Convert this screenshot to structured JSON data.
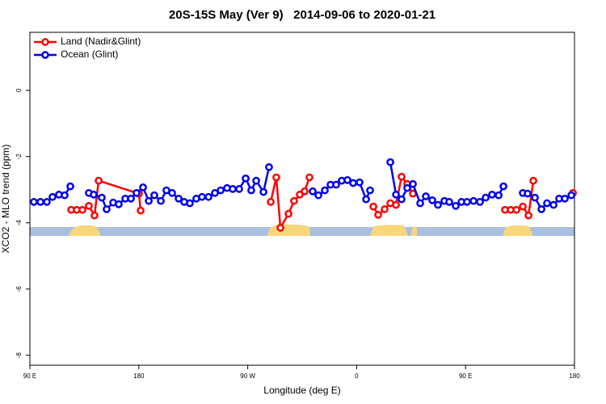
{
  "chart_data": {
    "type": "line",
    "title": "20S-15S May (Ver 9)   2014-09-06 to 2020-01-21",
    "x_label": "Longitude (deg E)",
    "y_label": "XCO2 - MLO trend (ppm)",
    "xlim": [
      90,
      540
    ],
    "xticks": [
      {
        "value": 90,
        "label": "90 E"
      },
      {
        "value": 180,
        "label": "180"
      },
      {
        "value": 270,
        "label": "90 W"
      },
      {
        "value": 360,
        "label": "0"
      },
      {
        "value": 450,
        "label": "90 E"
      },
      {
        "value": 540,
        "label": "180"
      }
    ],
    "ylim": [
      -8.3,
      1.75
    ],
    "yticks": [
      -8,
      -6,
      -4,
      -2,
      0
    ],
    "legend": "upper left",
    "series": [
      {
        "name": "Land (Nadir&Glint)",
        "color": "#ff0000",
        "x": [
          124.1,
          128.7,
          133.4,
          138.7,
          143.4,
          146.8,
          180.1,
          181.5,
          null,
          289.0,
          293.6,
          297.0,
          303.7,
          308.3,
          313.0,
          317.0,
          321.0,
          null,
          373.8,
          377.8,
          383.1,
          387.8,
          392.5,
          397.1,
          401.8,
          406.5,
          null,
          482.6,
          487.3,
          492.0,
          497.3,
          502.0,
          506.0,
          null,
          538.7
        ],
        "values": [
          -3.61,
          -3.61,
          -3.61,
          -3.49,
          -3.78,
          -2.73,
          -3.12,
          -3.63,
          null,
          -3.37,
          -2.63,
          -4.15,
          -3.73,
          -3.34,
          -3.15,
          -3.05,
          -2.63,
          null,
          -3.51,
          -3.76,
          -3.59,
          -3.41,
          -3.46,
          -2.61,
          -2.83,
          -3.12,
          null,
          -3.61,
          -3.61,
          -3.61,
          -3.51,
          -3.78,
          -2.73,
          null,
          -3.1
        ]
      },
      {
        "name": "Ocean (Glint)",
        "color": "#0000ee",
        "x": [
          93.3,
          98.7,
          104.0,
          108.7,
          114.0,
          118.7,
          123.4,
          null,
          138.7,
          142.7,
          149.4,
          153.4,
          158.8,
          163.4,
          168.8,
          173.5,
          178.1,
          183.5,
          188.2,
          192.8,
          198.2,
          202.8,
          207.5,
          212.9,
          217.5,
          222.2,
          227.5,
          232.2,
          237.6,
          242.9,
          247.6,
          252.9,
          257.6,
          262.9,
          268.3,
          272.9,
          277.0,
          283.0,
          287.6,
          null,
          323.7,
          328.4,
          333.7,
          338.4,
          343.1,
          347.7,
          352.4,
          357.1,
          362.4,
          367.8,
          371.1,
          null,
          387.8,
          392.5,
          397.1,
          401.8,
          406.5,
          412.5,
          417.2,
          422.5,
          427.2,
          432.5,
          436.5,
          441.9,
          446.6,
          451.2,
          456.6,
          461.9,
          466.6,
          471.9,
          477.3,
          481.3,
          null,
          497.3,
          501.3,
          507.3,
          512.7,
          517.3,
          522.7,
          527.3,
          532.0,
          537.4
        ],
        "values": [
          -3.37,
          -3.37,
          -3.37,
          -3.22,
          -3.15,
          -3.17,
          -2.9,
          null,
          -3.1,
          -3.15,
          -3.24,
          -3.59,
          -3.39,
          -3.44,
          -3.27,
          -3.27,
          -3.1,
          -2.93,
          -3.34,
          -3.17,
          -3.34,
          -3.02,
          -3.1,
          -3.27,
          -3.37,
          -3.41,
          -3.27,
          -3.22,
          -3.22,
          -3.1,
          -3.02,
          -2.95,
          -2.98,
          -2.98,
          -2.66,
          -3.02,
          -2.73,
          -3.07,
          -2.32,
          null,
          -3.05,
          -3.17,
          -3.02,
          -2.85,
          -2.85,
          -2.73,
          -2.71,
          -2.8,
          -2.78,
          -3.29,
          -3.02,
          null,
          -2.17,
          -3.15,
          -3.29,
          -2.95,
          -2.83,
          -3.41,
          -3.2,
          -3.32,
          -3.46,
          -3.34,
          -3.37,
          -3.49,
          -3.37,
          -3.37,
          -3.34,
          -3.37,
          -3.24,
          -3.15,
          -3.17,
          -2.9,
          null,
          -3.1,
          -3.12,
          -3.24,
          -3.59,
          -3.41,
          -3.46,
          -3.27,
          -3.27,
          -3.17
        ]
      }
    ]
  }
}
